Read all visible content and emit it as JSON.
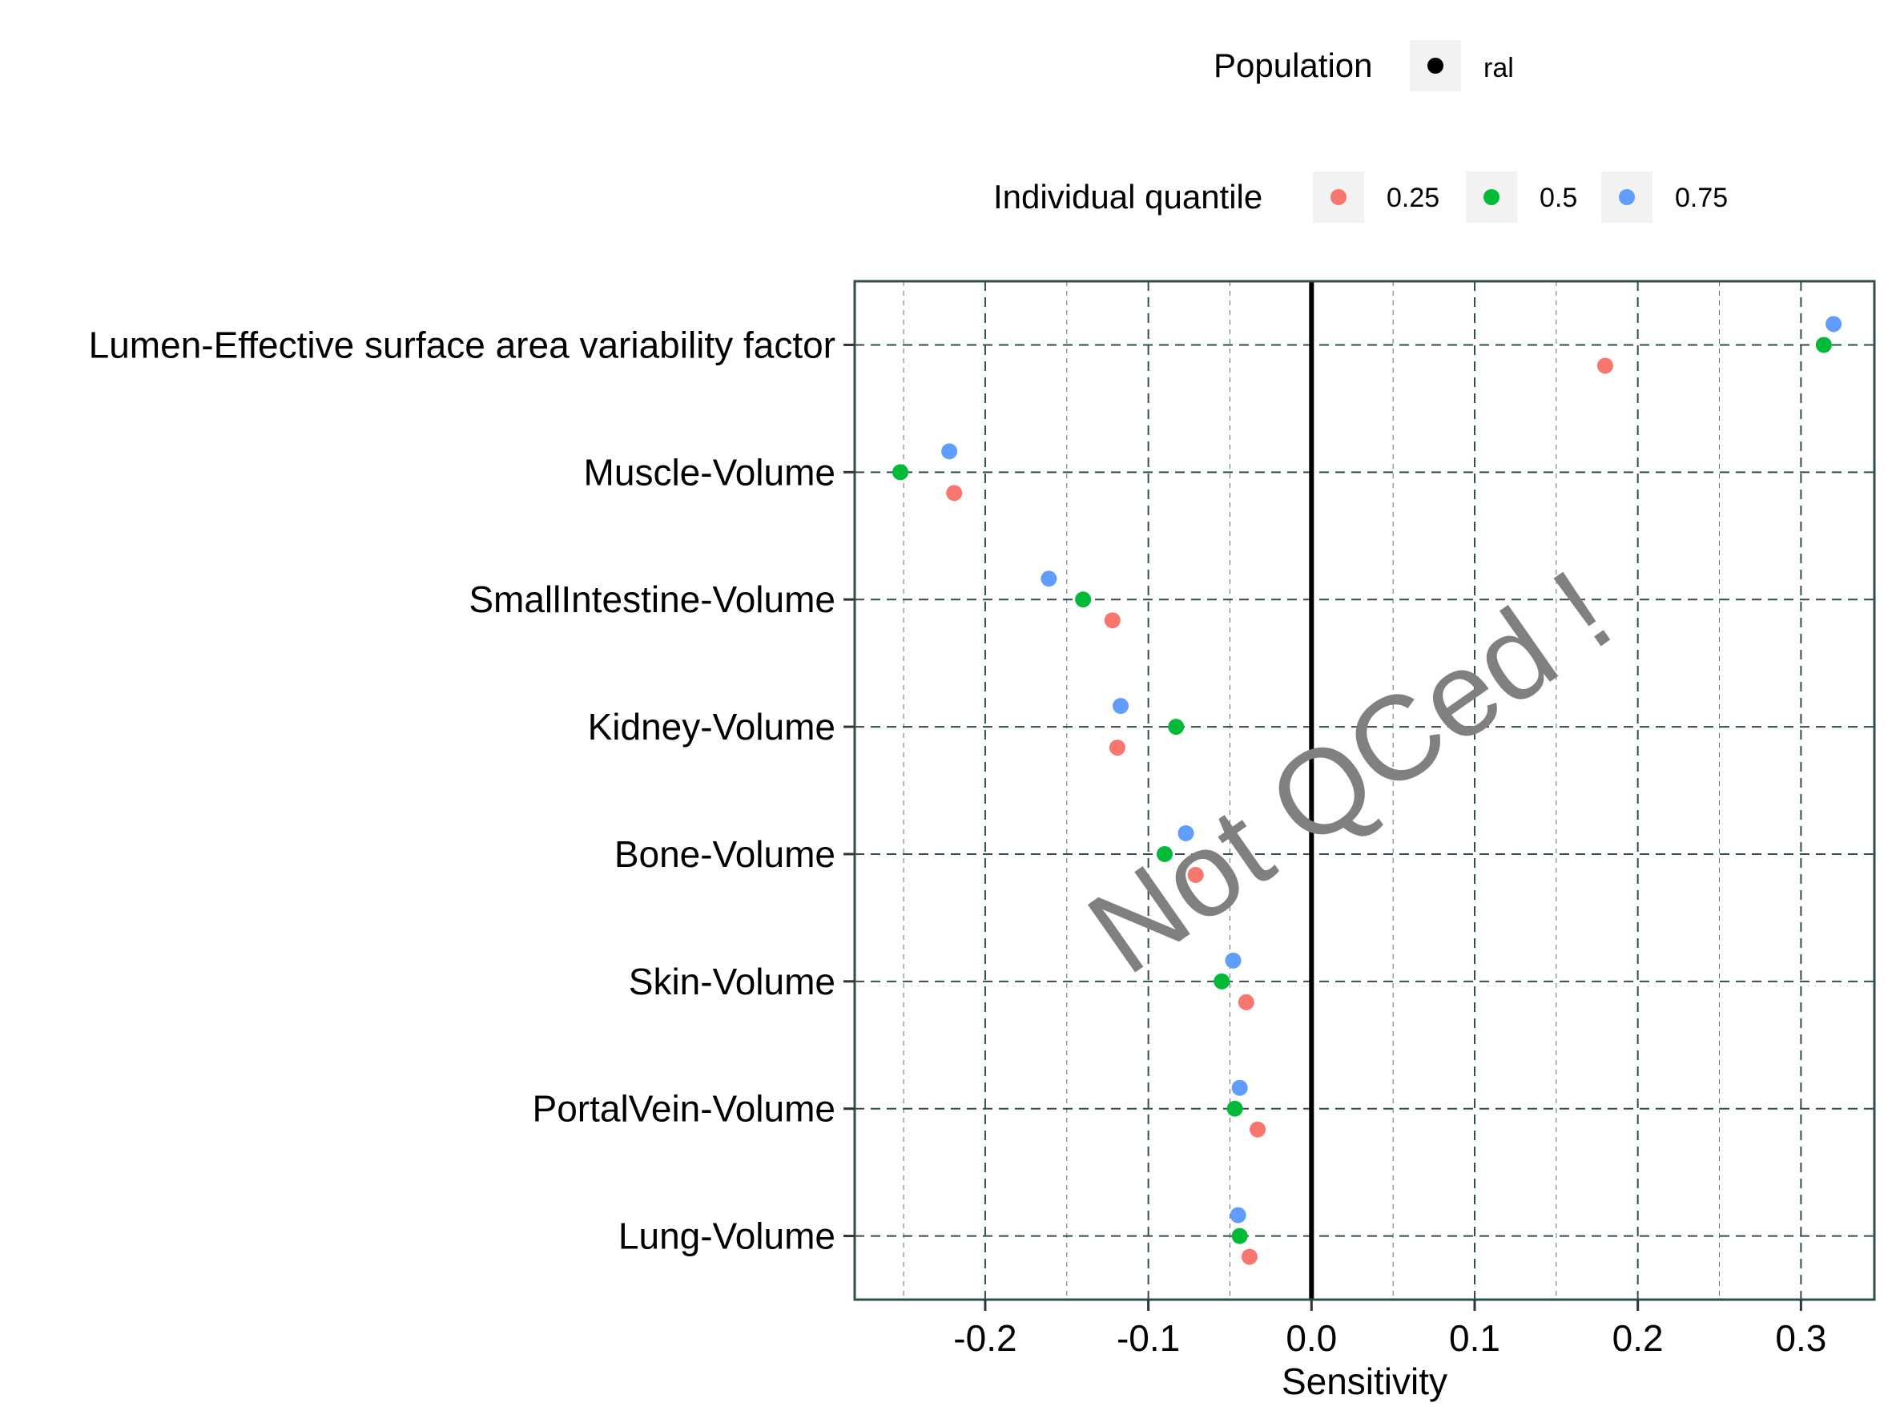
{
  "colors": {
    "q025": "#F8766D",
    "q05": "#00BA38",
    "q075": "#619CFF",
    "population": "#000000",
    "panel_border": "#2F4F4F",
    "grid": "#2F4F4F",
    "legend_key_bg": "#F2F2F2",
    "watermark": "#808080"
  },
  "legend": {
    "population": {
      "title": "Population",
      "items": [
        {
          "label": "ral",
          "color": "#000000"
        }
      ]
    },
    "quantile": {
      "title": "Individual quantile",
      "items": [
        {
          "label": "0.25",
          "color": "#F8766D"
        },
        {
          "label": "0.5",
          "color": "#00BA38"
        },
        {
          "label": "0.75",
          "color": "#619CFF"
        }
      ]
    }
  },
  "watermark": "Not QCed !",
  "chart_data": {
    "type": "scatter",
    "xlabel": "Sensitivity",
    "ylabel": "",
    "xlim": [
      -0.28,
      0.345
    ],
    "xticks": [
      -0.2,
      -0.1,
      0.0,
      0.1,
      0.2,
      0.3
    ],
    "xtick_labels": [
      "-0.2",
      "-0.1",
      "0.0",
      "0.1",
      "0.2",
      "0.3"
    ],
    "grid": true,
    "reference_line_x": 0.0,
    "categories": [
      "Lumen-Effective surface area variability factor",
      "Muscle-Volume",
      "SmallIntestine-Volume",
      "Kidney-Volume",
      "Bone-Volume",
      "Skin-Volume",
      "PortalVein-Volume",
      "Lung-Volume"
    ],
    "series": [
      {
        "name": "0.25",
        "color": "#F8766D",
        "values": [
          0.18,
          -0.219,
          -0.122,
          -0.119,
          -0.071,
          -0.04,
          -0.033,
          -0.038
        ]
      },
      {
        "name": "0.5",
        "color": "#00BA38",
        "values": [
          0.314,
          -0.252,
          -0.14,
          -0.083,
          -0.09,
          -0.055,
          -0.047,
          -0.044
        ]
      },
      {
        "name": "0.75",
        "color": "#619CFF",
        "values": [
          0.32,
          -0.222,
          -0.161,
          -0.117,
          -0.077,
          -0.048,
          -0.044,
          -0.045
        ]
      }
    ]
  }
}
